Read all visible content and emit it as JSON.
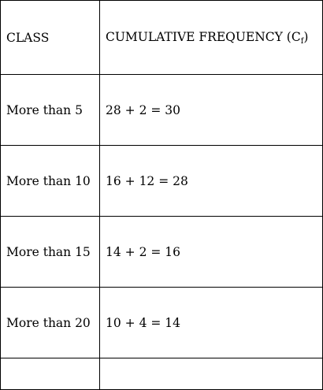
{
  "table": {
    "headers": {
      "class": "CLASS",
      "cumulative_frequency": "CUMULATIVE FREQUENCY (C",
      "cf_subscript": "f",
      "cf_close": ")"
    },
    "rows": [
      {
        "class": "More than 5",
        "value": "28 + 2 = 30"
      },
      {
        "class": "More than 10",
        "value": "16 + 12 = 28"
      },
      {
        "class": "More than 15",
        "value": "14 + 2 = 16"
      },
      {
        "class": "More than 20",
        "value": "10 + 4 = 14"
      }
    ]
  }
}
